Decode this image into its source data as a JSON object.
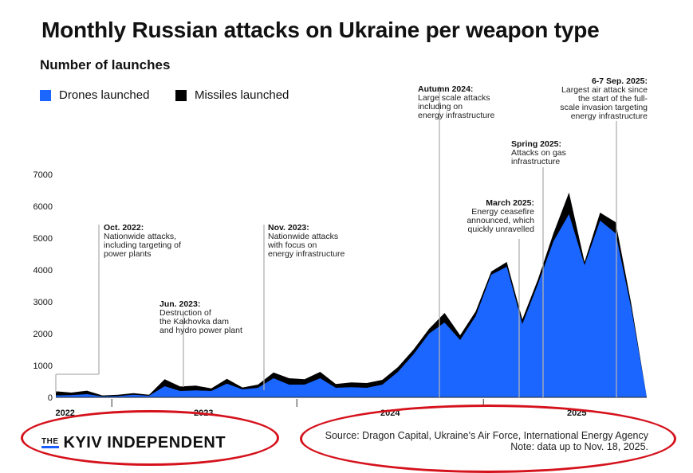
{
  "title": "Monthly Russian attacks on Ukraine per weapon type",
  "subtitle": "Number of launches",
  "legend": {
    "drones": "Drones launched",
    "missiles": "Missiles launched"
  },
  "colors": {
    "drones": "#1b66ff",
    "missiles": "#000000",
    "annotation_line": "#b0b0b0",
    "highlight": "#d5121c"
  },
  "chart_data": {
    "type": "area",
    "title": "Monthly Russian attacks on Ukraine per weapon type",
    "ylabel": "Number of launches",
    "ylim": [
      0,
      7000
    ],
    "yticks": [
      0,
      1000,
      2000,
      3000,
      4000,
      5000,
      6000,
      7000
    ],
    "xlabels": [
      {
        "label": "2022",
        "index": 0.6
      },
      {
        "label": "2023",
        "index": 9.5
      },
      {
        "label": "2024",
        "index": 21.5
      },
      {
        "label": "2025",
        "index": 33.5
      }
    ],
    "x": [
      "2022-09",
      "2022-10",
      "2022-11",
      "2022-12",
      "2023-01",
      "2023-02",
      "2023-03",
      "2023-04",
      "2023-05",
      "2023-06",
      "2023-07",
      "2023-08",
      "2023-09",
      "2023-10",
      "2023-11",
      "2023-12",
      "2024-01",
      "2024-02",
      "2024-03",
      "2024-04",
      "2024-05",
      "2024-06",
      "2024-07",
      "2024-08",
      "2024-09",
      "2024-10",
      "2024-11",
      "2024-12",
      "2025-01",
      "2025-02",
      "2025-03",
      "2025-04",
      "2025-05",
      "2025-06",
      "2025-07",
      "2025-08",
      "2025-09",
      "2025-10",
      "2025-11"
    ],
    "series": [
      {
        "name": "Drones launched",
        "values": [
          60,
          70,
          100,
          30,
          40,
          80,
          50,
          350,
          200,
          220,
          200,
          430,
          250,
          300,
          600,
          400,
          400,
          600,
          300,
          320,
          300,
          400,
          800,
          1350,
          2000,
          2350,
          1800,
          2550,
          3850,
          4100,
          2300,
          3550,
          4900,
          5750,
          4150,
          5550,
          5150,
          2800,
          0
        ]
      },
      {
        "name": "Missiles launched",
        "values": [
          130,
          80,
          110,
          30,
          40,
          50,
          30,
          220,
          140,
          150,
          80,
          150,
          60,
          100,
          180,
          200,
          170,
          200,
          120,
          150,
          150,
          150,
          150,
          150,
          150,
          300,
          150,
          150,
          100,
          150,
          150,
          150,
          250,
          680,
          100,
          250,
          350,
          150,
          0
        ]
      }
    ],
    "annotations": [
      {
        "title": "Oct. 2022:",
        "text": [
          "Nationwide attacks,",
          "including targeting of",
          "power plants"
        ]
      },
      {
        "title": "Jun. 2023:",
        "text": [
          "Destruction of",
          "the Kakhovka dam",
          "and hydro power plant"
        ]
      },
      {
        "title": "Nov. 2023:",
        "text": [
          "Nationwide attacks",
          "with focus on",
          "energy infrastructure"
        ]
      },
      {
        "title": "Autumn 2024:",
        "text": [
          "Large scale attacks",
          "including on",
          "energy infrastructure"
        ]
      },
      {
        "title": "March 2025:",
        "text": [
          "Energy ceasefire",
          "announced, which",
          "quickly unravelled"
        ]
      },
      {
        "title": "Spring 2025:",
        "text": [
          "Attacks on gas",
          "infrastructure"
        ]
      },
      {
        "title": "6-7 Sep. 2025:",
        "text": [
          "Largest air attack since",
          "the start of the full-",
          "scale invasion targeting",
          "energy infrastructure"
        ]
      }
    ]
  },
  "logo": {
    "prefix": "THE",
    "name": "KYIV INDEPENDENT"
  },
  "source": {
    "line1": "Source: Dragon Capital, Ukraine's Air Force, International Energy Agency",
    "line2": "Note: data up to Nov. 18, 2025."
  }
}
